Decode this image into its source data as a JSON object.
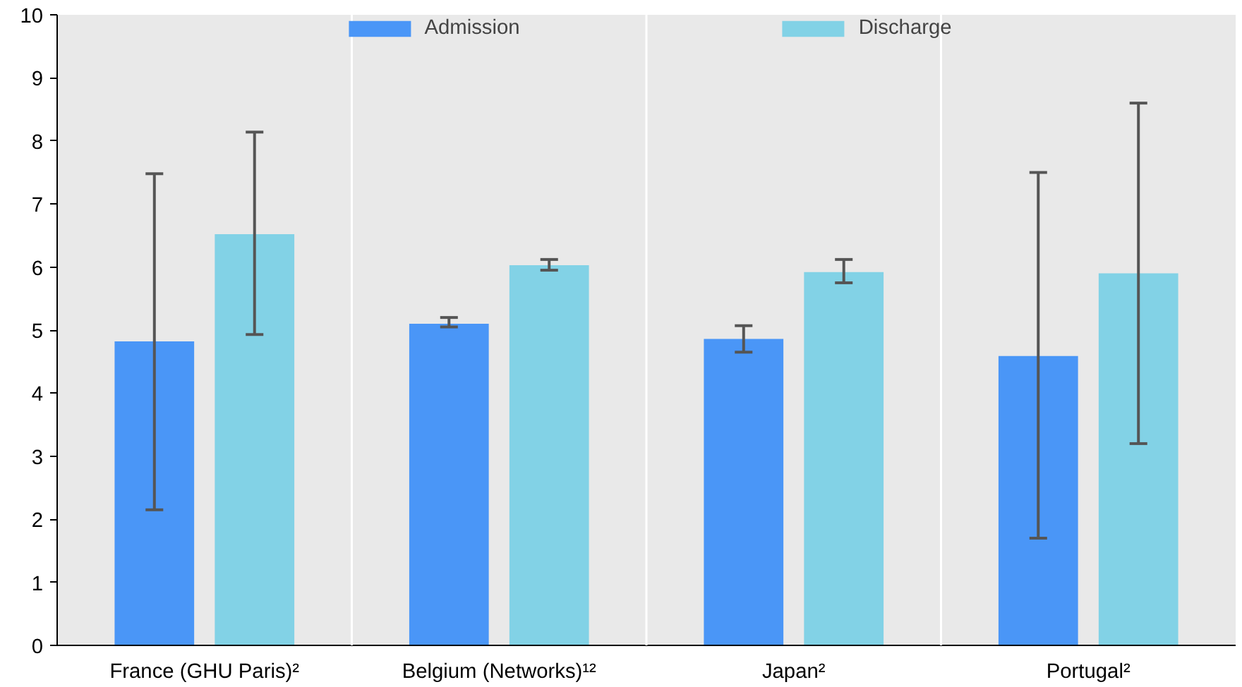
{
  "chart_data": {
    "type": "bar",
    "categories": [
      "France (GHU Paris)²",
      "Belgium (Networks)¹²",
      "Japan²",
      "Portugal²"
    ],
    "series": [
      {
        "name": "Admission",
        "color": "#4a96f7",
        "values": [
          4.82,
          5.1,
          4.86,
          4.59
        ],
        "errors": [
          [
            2.15,
            7.48
          ],
          [
            5.05,
            5.2
          ],
          [
            4.65,
            5.07
          ],
          [
            1.7,
            7.5
          ]
        ]
      },
      {
        "name": "Discharge",
        "color": "#82d2e6",
        "values": [
          6.52,
          6.03,
          5.92,
          5.9
        ],
        "errors": [
          [
            4.93,
            8.14
          ],
          [
            5.95,
            6.12
          ],
          [
            5.75,
            6.12
          ],
          [
            3.2,
            8.6
          ]
        ]
      }
    ],
    "ylim": [
      0,
      10
    ],
    "yticks": [
      0,
      1,
      2,
      3,
      4,
      5,
      6,
      7,
      8,
      9,
      10
    ],
    "grid": "x",
    "legend": "top"
  }
}
